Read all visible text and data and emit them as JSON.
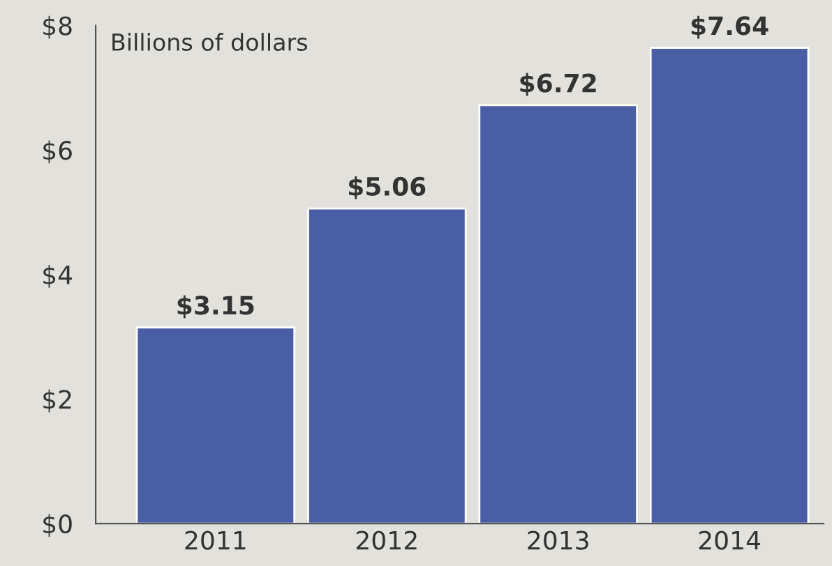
{
  "chart_data": {
    "type": "bar",
    "categories": [
      "2011",
      "2012",
      "2013",
      "2014"
    ],
    "values": [
      3.15,
      5.06,
      6.72,
      7.64
    ],
    "value_labels": [
      "$3.15",
      "$5.06",
      "$6.72",
      "$7.64"
    ],
    "color": "#4a5ea6",
    "ylim": [
      0,
      8
    ],
    "yticks": [
      {
        "value": 0,
        "label": "$0"
      },
      {
        "value": 2,
        "label": "$2"
      },
      {
        "value": 4,
        "label": "$4"
      },
      {
        "value": 6,
        "label": "$6"
      },
      {
        "value": 8,
        "label": "$8"
      }
    ],
    "annotations": [
      "Billions of dollars"
    ],
    "grid": false,
    "legend": false
  }
}
